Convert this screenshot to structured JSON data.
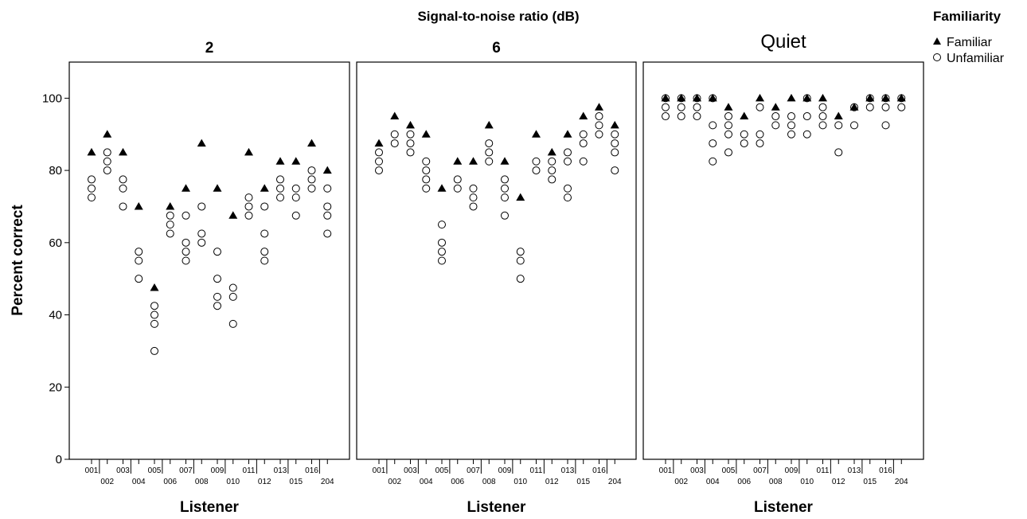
{
  "chart_data": {
    "type": "scatter",
    "title": "Signal-to-noise ratio (dB)",
    "ylabel": "Percent correct",
    "xlabel": "Listener",
    "ylim": [
      0,
      110
    ],
    "yticks": [
      0,
      20,
      40,
      60,
      80,
      100
    ],
    "legend": {
      "title": "Familiarity",
      "placement": "top-right",
      "entries": [
        {
          "name": "Familiar",
          "marker": "triangle-filled"
        },
        {
          "name": "Unfamiliar",
          "marker": "circle-open"
        }
      ]
    },
    "categories": [
      "001",
      "002",
      "003",
      "004",
      "005",
      "006",
      "007",
      "008",
      "009",
      "010",
      "011",
      "012",
      "013",
      "015",
      "016",
      "204"
    ],
    "panels": [
      {
        "title": "2",
        "familiar": [
          85,
          90,
          85,
          70,
          47.5,
          70,
          75,
          87.5,
          75,
          67.5,
          85,
          75,
          82.5,
          82.5,
          87.5,
          80
        ],
        "unfamiliar": [
          [
            77.5,
            75,
            72.5
          ],
          [
            85,
            82.5,
            80
          ],
          [
            77.5,
            75,
            70
          ],
          [
            57.5,
            55,
            50
          ],
          [
            42.5,
            40,
            37.5,
            30
          ],
          [
            67.5,
            65,
            62.5
          ],
          [
            67.5,
            60,
            57.5,
            55
          ],
          [
            70,
            62.5,
            60
          ],
          [
            57.5,
            50,
            45,
            42.5
          ],
          [
            47.5,
            45,
            37.5
          ],
          [
            72.5,
            70,
            67.5
          ],
          [
            70,
            62.5,
            57.5,
            55
          ],
          [
            77.5,
            75,
            72.5
          ],
          [
            75,
            72.5,
            67.5
          ],
          [
            80,
            77.5,
            75
          ],
          [
            75,
            70,
            67.5,
            62.5
          ]
        ]
      },
      {
        "title": "6",
        "familiar": [
          87.5,
          95,
          92.5,
          90,
          75,
          82.5,
          82.5,
          92.5,
          82.5,
          72.5,
          90,
          85,
          90,
          95,
          97.5,
          92.5
        ],
        "unfamiliar": [
          [
            85,
            82.5,
            80
          ],
          [
            90,
            87.5
          ],
          [
            90,
            87.5,
            85
          ],
          [
            82.5,
            80,
            77.5,
            75
          ],
          [
            65,
            60,
            57.5,
            55
          ],
          [
            77.5,
            75
          ],
          [
            75,
            72.5,
            70
          ],
          [
            87.5,
            85,
            82.5
          ],
          [
            77.5,
            75,
            72.5,
            67.5
          ],
          [
            57.5,
            55,
            50
          ],
          [
            82.5,
            80
          ],
          [
            82.5,
            80,
            77.5
          ],
          [
            85,
            82.5,
            75,
            72.5
          ],
          [
            90,
            87.5,
            82.5
          ],
          [
            95,
            92.5,
            90
          ],
          [
            90,
            87.5,
            85,
            80
          ]
        ]
      },
      {
        "title": "Quiet",
        "familiar": [
          100,
          100,
          100,
          100,
          97.5,
          95,
          100,
          97.5,
          100,
          100,
          100,
          95,
          97.5,
          100,
          100,
          100
        ],
        "unfamiliar": [
          [
            100,
            97.5,
            95
          ],
          [
            100,
            97.5,
            95
          ],
          [
            100,
            97.5,
            95
          ],
          [
            100,
            92.5,
            87.5,
            82.5
          ],
          [
            95,
            92.5,
            90,
            85
          ],
          [
            90,
            87.5
          ],
          [
            97.5,
            90,
            87.5
          ],
          [
            95,
            92.5
          ],
          [
            95,
            92.5,
            90
          ],
          [
            100,
            95,
            90
          ],
          [
            97.5,
            95,
            92.5
          ],
          [
            92.5,
            85
          ],
          [
            97.5,
            92.5
          ],
          [
            100,
            97.5
          ],
          [
            100,
            97.5,
            92.5
          ],
          [
            100,
            97.5
          ]
        ]
      }
    ]
  }
}
